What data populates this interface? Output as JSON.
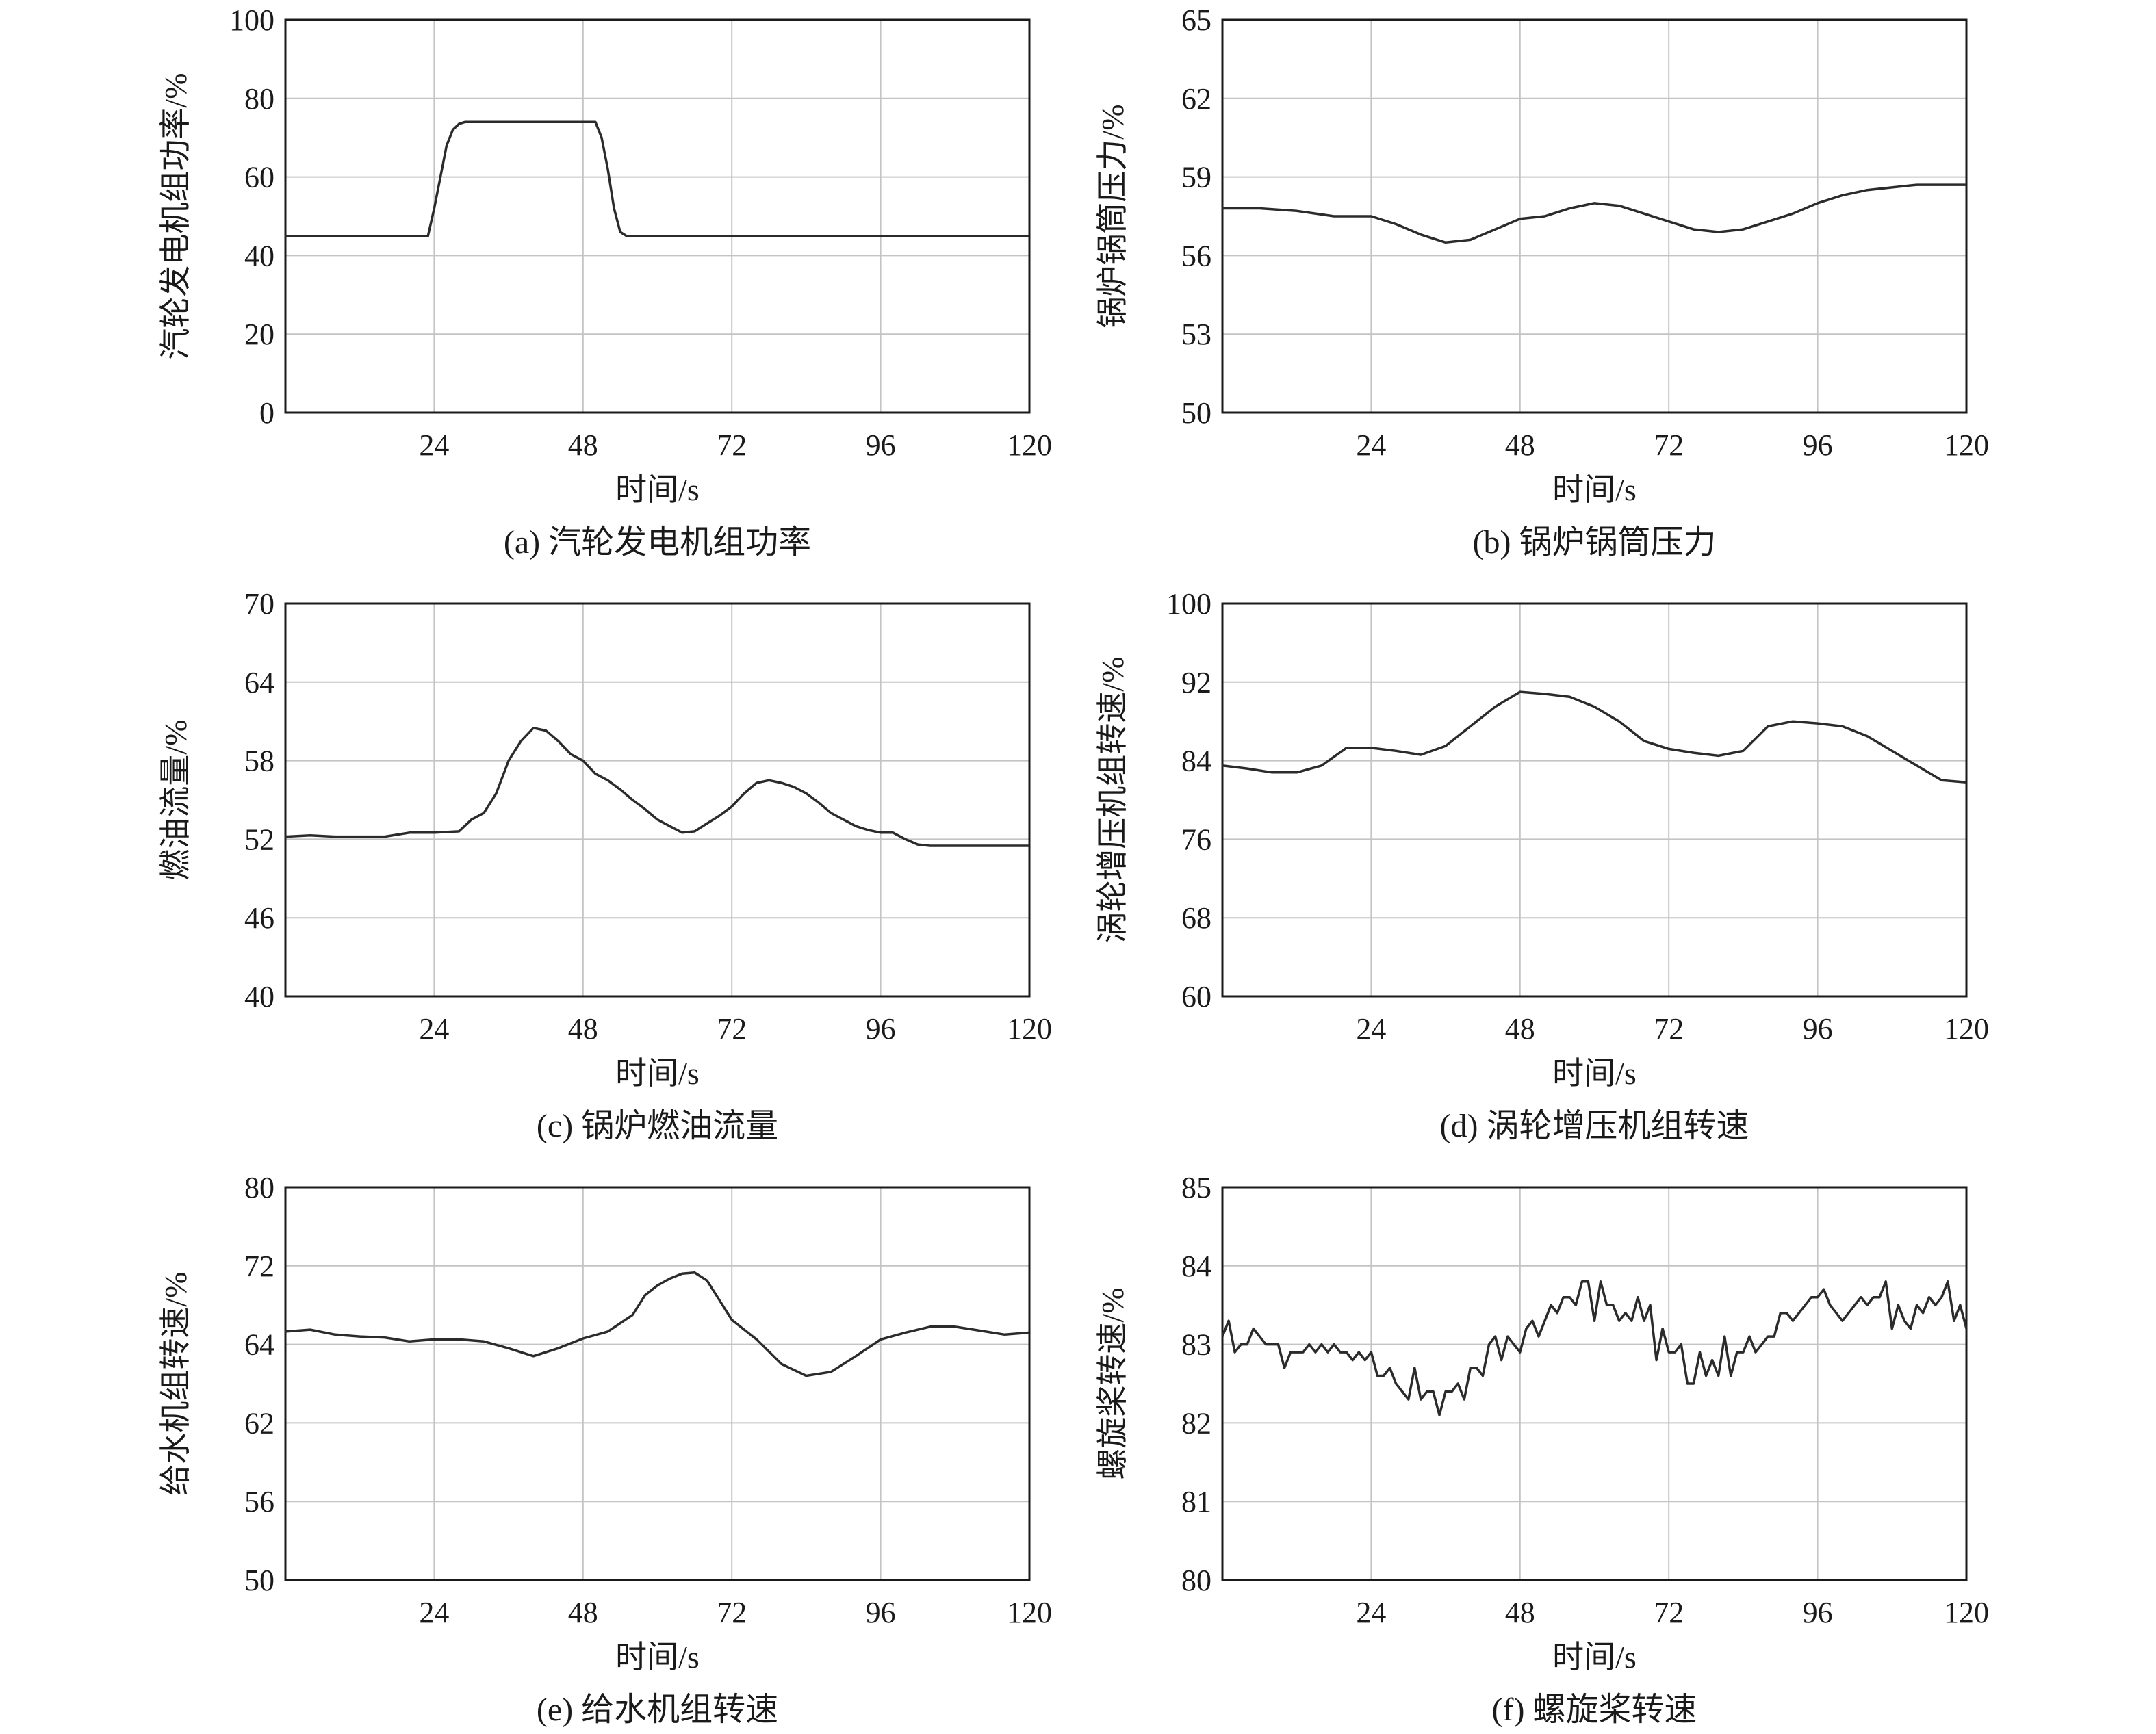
{
  "colors": {
    "line": "#2b2b2b",
    "axis": "#1a1a1a",
    "grid": "#c4c4c4"
  },
  "chart_data": [
    {
      "type": "line",
      "caption": "(a) 汽轮发电机组功率",
      "xlabel": "时间/s",
      "ylabel": "汽轮发电机组功率/%",
      "xlim": [
        0,
        120
      ],
      "ylim": [
        0,
        100
      ],
      "xticks": [
        24,
        48,
        72,
        96,
        120
      ],
      "yticks": [
        0,
        20,
        40,
        60,
        80,
        100
      ],
      "grid": true,
      "series": [
        {
          "x": [
            0,
            23,
            24,
            25,
            26,
            27,
            28,
            29,
            30,
            50,
            51,
            52,
            53,
            54,
            55,
            120
          ],
          "y": [
            45,
            45,
            52,
            60,
            68,
            72,
            73.5,
            74,
            74,
            74,
            70,
            62,
            52,
            46,
            45,
            45
          ]
        }
      ]
    },
    {
      "type": "line",
      "caption": "(b) 锅炉锅筒压力",
      "xlabel": "时间/s",
      "ylabel": "锅炉锅筒压力/%",
      "xlim": [
        0,
        120
      ],
      "ylim": [
        50,
        65
      ],
      "xticks": [
        24,
        48,
        72,
        96,
        120
      ],
      "yticks": [
        50,
        53,
        56,
        59,
        62,
        65
      ],
      "grid": true,
      "series": [
        {
          "x": [
            0,
            6,
            12,
            18,
            24,
            28,
            32,
            36,
            40,
            44,
            48,
            52,
            56,
            60,
            64,
            68,
            72,
            76,
            80,
            84,
            88,
            92,
            96,
            100,
            104,
            108,
            112,
            116,
            120
          ],
          "y": [
            57.8,
            57.8,
            57.7,
            57.5,
            57.5,
            57.2,
            56.8,
            56.5,
            56.6,
            57.0,
            57.4,
            57.5,
            57.8,
            58.0,
            57.9,
            57.6,
            57.3,
            57.0,
            56.9,
            57.0,
            57.3,
            57.6,
            58.0,
            58.3,
            58.5,
            58.6,
            58.7,
            58.7,
            58.7
          ]
        }
      ]
    },
    {
      "type": "line",
      "caption": "(c) 锅炉燃油流量",
      "xlabel": "时间/s",
      "ylabel": "燃油流量/%",
      "xlim": [
        0,
        120
      ],
      "ylim": [
        40,
        70
      ],
      "xticks": [
        24,
        48,
        72,
        96,
        120
      ],
      "yticks": [
        40,
        46,
        52,
        58,
        64,
        70
      ],
      "grid": true,
      "series": [
        {
          "x": [
            0,
            4,
            8,
            12,
            16,
            20,
            24,
            28,
            30,
            32,
            34,
            36,
            38,
            40,
            42,
            44,
            46,
            48,
            50,
            52,
            54,
            56,
            58,
            60,
            62,
            64,
            66,
            68,
            70,
            72,
            74,
            76,
            78,
            80,
            82,
            84,
            86,
            88,
            90,
            92,
            94,
            96,
            98,
            100,
            102,
            104,
            106,
            108,
            110,
            112,
            114,
            116,
            118,
            120
          ],
          "y": [
            52.2,
            52.3,
            52.2,
            52.2,
            52.2,
            52.5,
            52.5,
            52.6,
            53.5,
            54.0,
            55.5,
            58.0,
            59.5,
            60.5,
            60.3,
            59.5,
            58.5,
            58.0,
            57.0,
            56.5,
            55.8,
            55.0,
            54.3,
            53.5,
            53.0,
            52.5,
            52.6,
            53.2,
            53.8,
            54.5,
            55.5,
            56.3,
            56.5,
            56.3,
            56.0,
            55.5,
            54.8,
            54.0,
            53.5,
            53.0,
            52.7,
            52.5,
            52.5,
            52.0,
            51.6,
            51.5,
            51.5,
            51.5,
            51.5,
            51.5,
            51.5,
            51.5,
            51.5,
            51.5
          ]
        }
      ]
    },
    {
      "type": "line",
      "caption": "(d) 涡轮增压机组转速",
      "xlabel": "时间/s",
      "ylabel": "涡轮增压机组转速/%",
      "xlim": [
        0,
        120
      ],
      "ylim": [
        60,
        100
      ],
      "xticks": [
        24,
        48,
        72,
        96,
        120
      ],
      "yticks": [
        60,
        68,
        76,
        84,
        92,
        100
      ],
      "grid": true,
      "series": [
        {
          "x": [
            0,
            4,
            8,
            12,
            16,
            20,
            24,
            28,
            32,
            36,
            40,
            44,
            48,
            52,
            56,
            60,
            64,
            68,
            72,
            76,
            80,
            84,
            88,
            92,
            96,
            100,
            104,
            108,
            112,
            116,
            120
          ],
          "y": [
            83.5,
            83.2,
            82.8,
            82.8,
            83.5,
            85.3,
            85.3,
            85.0,
            84.6,
            85.5,
            87.5,
            89.5,
            91.0,
            90.8,
            90.5,
            89.5,
            88.0,
            86.0,
            85.2,
            84.8,
            84.5,
            85.0,
            87.5,
            88.0,
            87.8,
            87.5,
            86.5,
            85.0,
            83.5,
            82.0,
            81.8
          ]
        }
      ]
    },
    {
      "type": "line",
      "caption": "(e) 给水机组转速",
      "xlabel": "时间/s",
      "ylabel": "给水机组转速/%",
      "xlim": [
        0,
        120
      ],
      "ylim": [
        50,
        80
      ],
      "xticks": [
        24,
        48,
        72,
        96,
        120
      ],
      "yticks": [
        50,
        56,
        62,
        64,
        72,
        80
      ],
      "grid": true,
      "series": [
        {
          "x": [
            0,
            4,
            8,
            12,
            16,
            20,
            24,
            28,
            32,
            36,
            40,
            44,
            48,
            52,
            56,
            58,
            60,
            62,
            64,
            66,
            68,
            70,
            72,
            74,
            76,
            80,
            84,
            88,
            92,
            96,
            100,
            104,
            108,
            112,
            116,
            120
          ],
          "y": [
            65.3,
            65.5,
            65.0,
            64.8,
            64.7,
            64.3,
            64.5,
            64.5,
            64.3,
            63.9,
            63.7,
            63.9,
            64.6,
            65.3,
            67.0,
            69.0,
            70.0,
            70.7,
            71.2,
            71.3,
            70.5,
            68.5,
            66.5,
            65.5,
            64.5,
            63.5,
            63.2,
            63.3,
            63.7,
            64.5,
            65.2,
            65.8,
            65.8,
            65.4,
            65.0,
            65.2
          ]
        }
      ]
    },
    {
      "type": "line",
      "caption": "(f) 螺旋桨转速",
      "xlabel": "时间/s",
      "ylabel": "螺旋桨转速/%",
      "xlim": [
        0,
        120
      ],
      "ylim": [
        80,
        85
      ],
      "xticks": [
        24,
        48,
        72,
        96,
        120
      ],
      "yticks": [
        80,
        81,
        82,
        83,
        84,
        85
      ],
      "grid": true,
      "series": [
        {
          "x": [
            0,
            1,
            2,
            3,
            4,
            5,
            6,
            7,
            8,
            9,
            10,
            11,
            12,
            13,
            14,
            15,
            16,
            17,
            18,
            19,
            20,
            21,
            22,
            23,
            24,
            25,
            26,
            27,
            28,
            29,
            30,
            31,
            32,
            33,
            34,
            35,
            36,
            37,
            38,
            39,
            40,
            41,
            42,
            43,
            44,
            45,
            46,
            47,
            48,
            49,
            50,
            51,
            52,
            53,
            54,
            55,
            56,
            57,
            58,
            59,
            60,
            61,
            62,
            63,
            64,
            65,
            66,
            67,
            68,
            69,
            70,
            71,
            72,
            73,
            74,
            75,
            76,
            77,
            78,
            79,
            80,
            81,
            82,
            83,
            84,
            85,
            86,
            87,
            88,
            89,
            90,
            91,
            92,
            93,
            94,
            95,
            96,
            97,
            98,
            99,
            100,
            101,
            102,
            103,
            104,
            105,
            106,
            107,
            108,
            109,
            110,
            111,
            112,
            113,
            114,
            115,
            116,
            117,
            118,
            119,
            120
          ],
          "y": [
            83.1,
            83.3,
            82.9,
            83.0,
            83.0,
            83.2,
            83.1,
            83.0,
            83.0,
            83.0,
            82.7,
            82.9,
            82.9,
            82.9,
            83.0,
            82.9,
            83.0,
            82.9,
            83.0,
            82.9,
            82.9,
            82.8,
            82.9,
            82.8,
            82.9,
            82.6,
            82.6,
            82.7,
            82.5,
            82.4,
            82.3,
            82.7,
            82.3,
            82.4,
            82.4,
            82.1,
            82.4,
            82.4,
            82.5,
            82.3,
            82.7,
            82.7,
            82.6,
            83.0,
            83.1,
            82.8,
            83.1,
            83.0,
            82.9,
            83.2,
            83.3,
            83.1,
            83.3,
            83.5,
            83.4,
            83.6,
            83.6,
            83.5,
            83.8,
            83.8,
            83.3,
            83.8,
            83.5,
            83.5,
            83.3,
            83.4,
            83.3,
            83.6,
            83.3,
            83.5,
            82.8,
            83.2,
            82.9,
            82.9,
            83.0,
            82.5,
            82.5,
            82.9,
            82.6,
            82.8,
            82.6,
            83.1,
            82.6,
            82.9,
            82.9,
            83.1,
            82.9,
            83.0,
            83.1,
            83.1,
            83.4,
            83.4,
            83.3,
            83.4,
            83.5,
            83.6,
            83.6,
            83.7,
            83.5,
            83.4,
            83.3,
            83.4,
            83.5,
            83.6,
            83.5,
            83.6,
            83.6,
            83.8,
            83.2,
            83.5,
            83.3,
            83.2,
            83.5,
            83.4,
            83.6,
            83.5,
            83.6,
            83.8,
            83.3,
            83.5,
            83.2
          ]
        }
      ]
    }
  ]
}
